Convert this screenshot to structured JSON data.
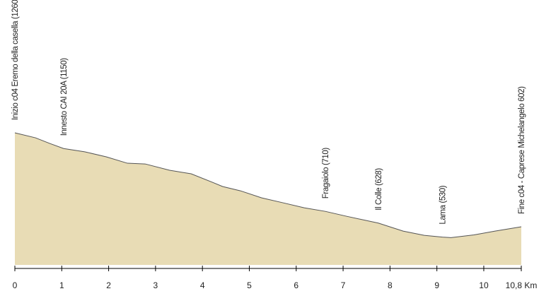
{
  "chart_data": {
    "type": "area",
    "x": [
      0,
      0.44,
      0.74,
      1.04,
      1.49,
      1.95,
      2.4,
      2.78,
      3.3,
      3.76,
      4.21,
      4.43,
      4.81,
      5.26,
      5.72,
      6.17,
      6.62,
      7.07,
      7.75,
      8.28,
      8.73,
      9.12,
      9.3,
      9.79,
      10.24,
      10.8
    ],
    "values": [
      1260,
      1225,
      1186,
      1150,
      1127,
      1092,
      1047,
      1042,
      998,
      973,
      914,
      884,
      854,
      805,
      770,
      735,
      710,
      676,
      628,
      572,
      542,
      530,
      526,
      545,
      572,
      602
    ],
    "color": "#e8dcb5",
    "line_color": "#555555",
    "xlim": [
      0,
      10.8
    ],
    "xticks": [
      0,
      1,
      2,
      3,
      4,
      5,
      6,
      7,
      8,
      9,
      10,
      {
        "value": 10.8,
        "label": "10,8 Km"
      }
    ],
    "ylim": [
      335,
      1260
    ],
    "annotations": [
      {
        "text": "Inizio c04 Eremo della casella (1260)",
        "x": 0
      },
      {
        "text": "Innesto CAI 20A (1150)",
        "x": 1.04
      },
      {
        "text": "Fragaiolo (710)",
        "x": 6.62
      },
      {
        "text": "Il Colle (628)",
        "x": 7.75
      },
      {
        "text": "Lama (530)",
        "x": 9.12
      },
      {
        "text": "Fine c04 - Caprese Michelangelo 602)",
        "x": 10.8
      }
    ]
  }
}
